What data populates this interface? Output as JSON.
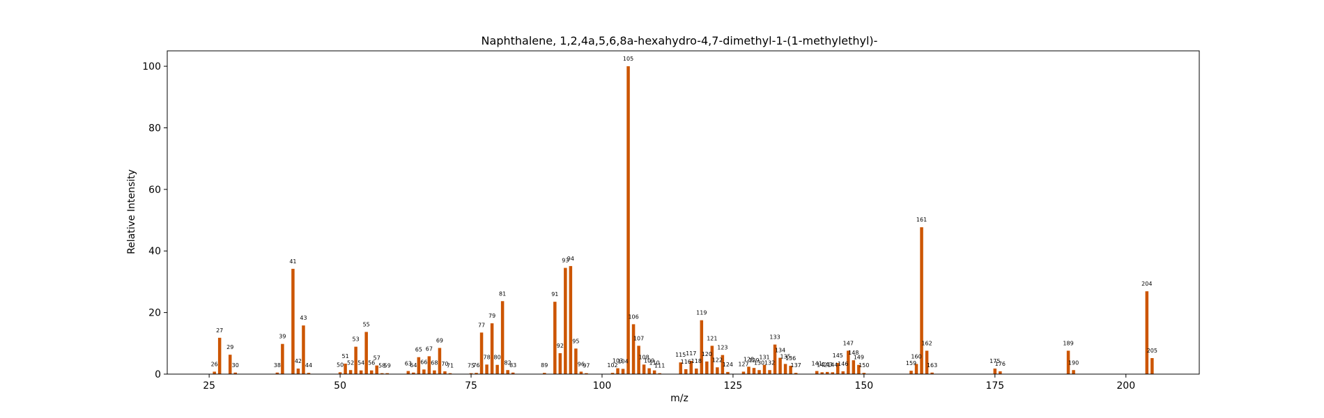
{
  "chart_data": {
    "type": "bar",
    "title": "Naphthalene, 1,2,4a,5,6,8a-hexahydro-4,7-dimethyl-1-(1-methylethyl)-",
    "xlabel": "m/z",
    "ylabel": "Relative Intensity",
    "xlim": [
      17,
      214
    ],
    "ylim": [
      0,
      105
    ],
    "xticks": [
      25,
      50,
      75,
      100,
      125,
      150,
      175,
      200
    ],
    "yticks": [
      0,
      20,
      40,
      60,
      80,
      100
    ],
    "bar_color": "#cc5500",
    "grid": false,
    "peaks": [
      {
        "mz": 26,
        "intensity": 0.8,
        "label": "26"
      },
      {
        "mz": 27,
        "intensity": 11.8,
        "label": "27"
      },
      {
        "mz": 29,
        "intensity": 6.3,
        "label": "29"
      },
      {
        "mz": 30,
        "intensity": 0.5,
        "label": "30"
      },
      {
        "mz": 38,
        "intensity": 0.5,
        "label": "38"
      },
      {
        "mz": 39,
        "intensity": 9.8,
        "label": "39"
      },
      {
        "mz": 41,
        "intensity": 34.2,
        "label": "41"
      },
      {
        "mz": 42,
        "intensity": 1.8,
        "label": "42"
      },
      {
        "mz": 43,
        "intensity": 15.8,
        "label": "43"
      },
      {
        "mz": 44,
        "intensity": 0.4,
        "label": "44"
      },
      {
        "mz": 50,
        "intensity": 0.6,
        "label": "50"
      },
      {
        "mz": 51,
        "intensity": 3.4,
        "label": "51"
      },
      {
        "mz": 52,
        "intensity": 1.3,
        "label": "52"
      },
      {
        "mz": 53,
        "intensity": 8.9,
        "label": "53"
      },
      {
        "mz": 54,
        "intensity": 1.2,
        "label": "54"
      },
      {
        "mz": 55,
        "intensity": 13.7,
        "label": "55"
      },
      {
        "mz": 56,
        "intensity": 1.2,
        "label": "56"
      },
      {
        "mz": 57,
        "intensity": 2.8,
        "label": "57"
      },
      {
        "mz": 58,
        "intensity": 0.3,
        "label": "58"
      },
      {
        "mz": 59,
        "intensity": 0.3,
        "label": "59"
      },
      {
        "mz": 63,
        "intensity": 1.0,
        "label": "63"
      },
      {
        "mz": 64,
        "intensity": 0.5,
        "label": "64"
      },
      {
        "mz": 65,
        "intensity": 5.5,
        "label": "65"
      },
      {
        "mz": 66,
        "intensity": 1.5,
        "label": "66"
      },
      {
        "mz": 67,
        "intensity": 5.8,
        "label": "67"
      },
      {
        "mz": 68,
        "intensity": 1.2,
        "label": "68"
      },
      {
        "mz": 69,
        "intensity": 8.5,
        "label": "69"
      },
      {
        "mz": 70,
        "intensity": 0.9,
        "label": "70"
      },
      {
        "mz": 71,
        "intensity": 0.3,
        "label": "71"
      },
      {
        "mz": 75,
        "intensity": 0.3,
        "label": "75"
      },
      {
        "mz": 76,
        "intensity": 0.4,
        "label": "76"
      },
      {
        "mz": 77,
        "intensity": 13.5,
        "label": "77"
      },
      {
        "mz": 78,
        "intensity": 3.1,
        "label": "78"
      },
      {
        "mz": 79,
        "intensity": 16.5,
        "label": "79"
      },
      {
        "mz": 80,
        "intensity": 3.0,
        "label": "80"
      },
      {
        "mz": 81,
        "intensity": 23.7,
        "label": "81"
      },
      {
        "mz": 82,
        "intensity": 1.3,
        "label": "82"
      },
      {
        "mz": 83,
        "intensity": 0.5,
        "label": "83"
      },
      {
        "mz": 89,
        "intensity": 0.4,
        "label": "89"
      },
      {
        "mz": 91,
        "intensity": 23.5,
        "label": "91"
      },
      {
        "mz": 92,
        "intensity": 6.8,
        "label": "92"
      },
      {
        "mz": 93,
        "intensity": 34.5,
        "label": "93"
      },
      {
        "mz": 94,
        "intensity": 35.1,
        "label": "94"
      },
      {
        "mz": 95,
        "intensity": 8.3,
        "label": "95"
      },
      {
        "mz": 96,
        "intensity": 0.8,
        "label": "96"
      },
      {
        "mz": 97,
        "intensity": 0.3,
        "label": "97"
      },
      {
        "mz": 102,
        "intensity": 0.4,
        "label": "102"
      },
      {
        "mz": 103,
        "intensity": 1.9,
        "label": "103"
      },
      {
        "mz": 104,
        "intensity": 1.7,
        "label": "104"
      },
      {
        "mz": 105,
        "intensity": 100.0,
        "label": "105"
      },
      {
        "mz": 106,
        "intensity": 16.2,
        "label": "106"
      },
      {
        "mz": 107,
        "intensity": 9.2,
        "label": "107"
      },
      {
        "mz": 108,
        "intensity": 3.1,
        "label": "108"
      },
      {
        "mz": 109,
        "intensity": 1.9,
        "label": "109"
      },
      {
        "mz": 110,
        "intensity": 1.2,
        "label": "110"
      },
      {
        "mz": 111,
        "intensity": 0.3,
        "label": "111"
      },
      {
        "mz": 115,
        "intensity": 3.8,
        "label": "115"
      },
      {
        "mz": 116,
        "intensity": 1.6,
        "label": "116"
      },
      {
        "mz": 117,
        "intensity": 4.3,
        "label": "117"
      },
      {
        "mz": 118,
        "intensity": 1.8,
        "label": "118"
      },
      {
        "mz": 119,
        "intensity": 17.5,
        "label": "119"
      },
      {
        "mz": 120,
        "intensity": 4.1,
        "label": "120"
      },
      {
        "mz": 121,
        "intensity": 9.2,
        "label": "121"
      },
      {
        "mz": 122,
        "intensity": 2.2,
        "label": "122"
      },
      {
        "mz": 123,
        "intensity": 6.2,
        "label": "123"
      },
      {
        "mz": 124,
        "intensity": 0.7,
        "label": "124"
      },
      {
        "mz": 127,
        "intensity": 0.8,
        "label": "127"
      },
      {
        "mz": 128,
        "intensity": 2.4,
        "label": "128"
      },
      {
        "mz": 129,
        "intensity": 2.0,
        "label": "129"
      },
      {
        "mz": 130,
        "intensity": 1.3,
        "label": "130"
      },
      {
        "mz": 131,
        "intensity": 3.0,
        "label": "131"
      },
      {
        "mz": 132,
        "intensity": 1.3,
        "label": "132"
      },
      {
        "mz": 133,
        "intensity": 9.6,
        "label": "133"
      },
      {
        "mz": 134,
        "intensity": 5.3,
        "label": "134"
      },
      {
        "mz": 135,
        "intensity": 3.3,
        "label": "135"
      },
      {
        "mz": 136,
        "intensity": 2.7,
        "label": "136"
      },
      {
        "mz": 137,
        "intensity": 0.4,
        "label": "137"
      },
      {
        "mz": 141,
        "intensity": 1.0,
        "label": "141"
      },
      {
        "mz": 142,
        "intensity": 0.6,
        "label": "142"
      },
      {
        "mz": 143,
        "intensity": 0.7,
        "label": "143"
      },
      {
        "mz": 144,
        "intensity": 0.6,
        "label": "144"
      },
      {
        "mz": 145,
        "intensity": 3.6,
        "label": "145"
      },
      {
        "mz": 146,
        "intensity": 0.9,
        "label": "146"
      },
      {
        "mz": 147,
        "intensity": 7.6,
        "label": "147"
      },
      {
        "mz": 148,
        "intensity": 4.5,
        "label": "148"
      },
      {
        "mz": 149,
        "intensity": 3.0,
        "label": "149"
      },
      {
        "mz": 150,
        "intensity": 0.4,
        "label": "150"
      },
      {
        "mz": 159,
        "intensity": 1.1,
        "label": "159"
      },
      {
        "mz": 160,
        "intensity": 3.3,
        "label": "160"
      },
      {
        "mz": 161,
        "intensity": 47.7,
        "label": "161"
      },
      {
        "mz": 162,
        "intensity": 7.6,
        "label": "162"
      },
      {
        "mz": 163,
        "intensity": 0.5,
        "label": "163"
      },
      {
        "mz": 175,
        "intensity": 1.8,
        "label": "175"
      },
      {
        "mz": 176,
        "intensity": 0.9,
        "label": "176"
      },
      {
        "mz": 189,
        "intensity": 7.6,
        "label": "189"
      },
      {
        "mz": 190,
        "intensity": 1.3,
        "label": "190"
      },
      {
        "mz": 204,
        "intensity": 26.9,
        "label": "204"
      },
      {
        "mz": 205,
        "intensity": 5.2,
        "label": "205"
      }
    ]
  }
}
